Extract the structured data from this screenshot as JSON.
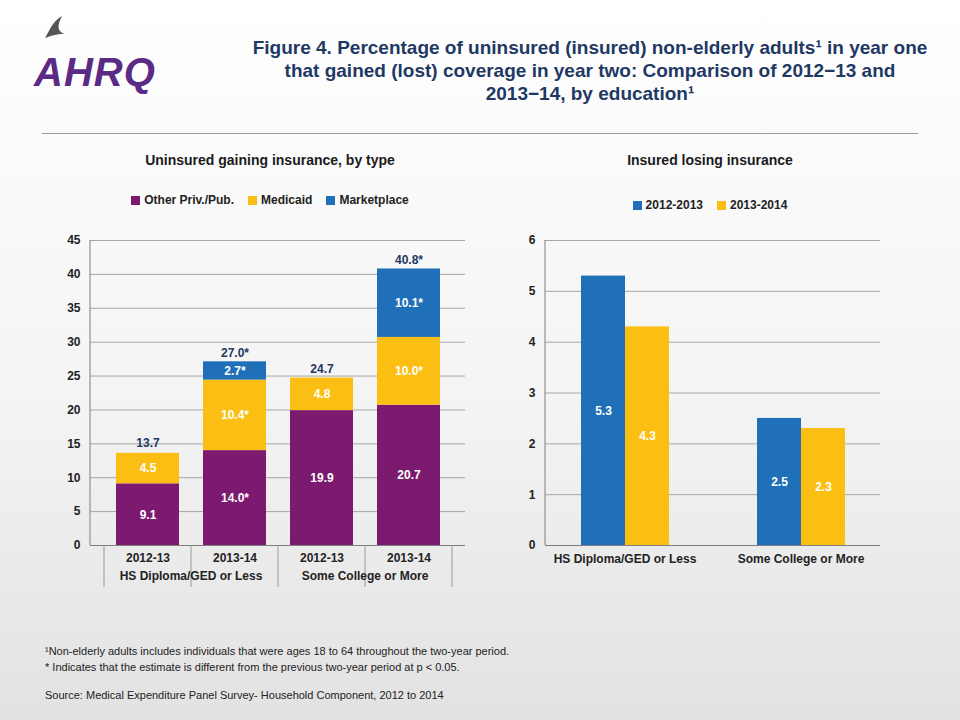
{
  "header": {
    "logo": "AHRQ",
    "title": "Figure 4. Percentage of uninsured (insured) non-elderly adults¹ in year one that gained (lost) coverage in year two: Comparison of 2012−13 and 2013−14, by education¹"
  },
  "chart_data": [
    {
      "type": "bar",
      "stacked": true,
      "title": "Uninsured gaining insurance, by type",
      "categories": [
        "2012-13",
        "2013-14",
        "2012-13",
        "2013-14"
      ],
      "group_labels": [
        "HS Diploma/GED or Less",
        "HS Diploma/GED or Less",
        "Some College or More",
        "Some College or More"
      ],
      "series": [
        {
          "name": "Other Priv./Pub.",
          "color": "#7b1a6e",
          "values": [
            9.1,
            14.0,
            19.9,
            20.7
          ],
          "value_labels": [
            "9.1",
            "14.0*",
            "19.9",
            "20.7"
          ]
        },
        {
          "name": "Medicaid",
          "color": "#fbbf14",
          "values": [
            4.5,
            10.4,
            4.8,
            10.0
          ],
          "value_labels": [
            "4.5",
            "10.4*",
            "4.8",
            "10.0*"
          ]
        },
        {
          "name": "Marketplace",
          "color": "#1f70b8",
          "values": [
            null,
            2.7,
            null,
            10.1
          ],
          "value_labels": [
            null,
            "2.7*",
            null,
            "10.1*"
          ]
        }
      ],
      "totals": [
        13.7,
        27.0,
        24.7,
        40.8
      ],
      "total_labels": [
        "13.7",
        "27.0*",
        "24.7",
        "40.8*"
      ],
      "ylim": [
        0,
        45
      ],
      "yticks": [
        0,
        5,
        10,
        15,
        20,
        25,
        30,
        35,
        40,
        45
      ],
      "grid": true,
      "legend": "top",
      "data_labels": true
    },
    {
      "type": "bar",
      "title": "Insured losing insurance",
      "categories": [
        "HS Diploma/GED or Less",
        "Some College or More"
      ],
      "series": [
        {
          "name": "2012-2013",
          "color": "#1f70b8",
          "values": [
            5.3,
            2.5
          ]
        },
        {
          "name": "2013-2014",
          "color": "#fbbf14",
          "values": [
            4.3,
            2.3
          ]
        }
      ],
      "ylim": [
        0,
        6
      ],
      "yticks": [
        0,
        1,
        2,
        3,
        4,
        5,
        6
      ],
      "grid": true,
      "legend": "top",
      "data_labels": true
    }
  ],
  "footnotes": [
    "¹Non-elderly adults includes individuals that were ages 18 to 64 throughout the two-year period.",
    "* Indicates that the estimate is different from the previous two-year period at p < 0.05."
  ],
  "source": "Source:  Medical Expenditure Panel Survey- Household Component, 2012 to 2014"
}
